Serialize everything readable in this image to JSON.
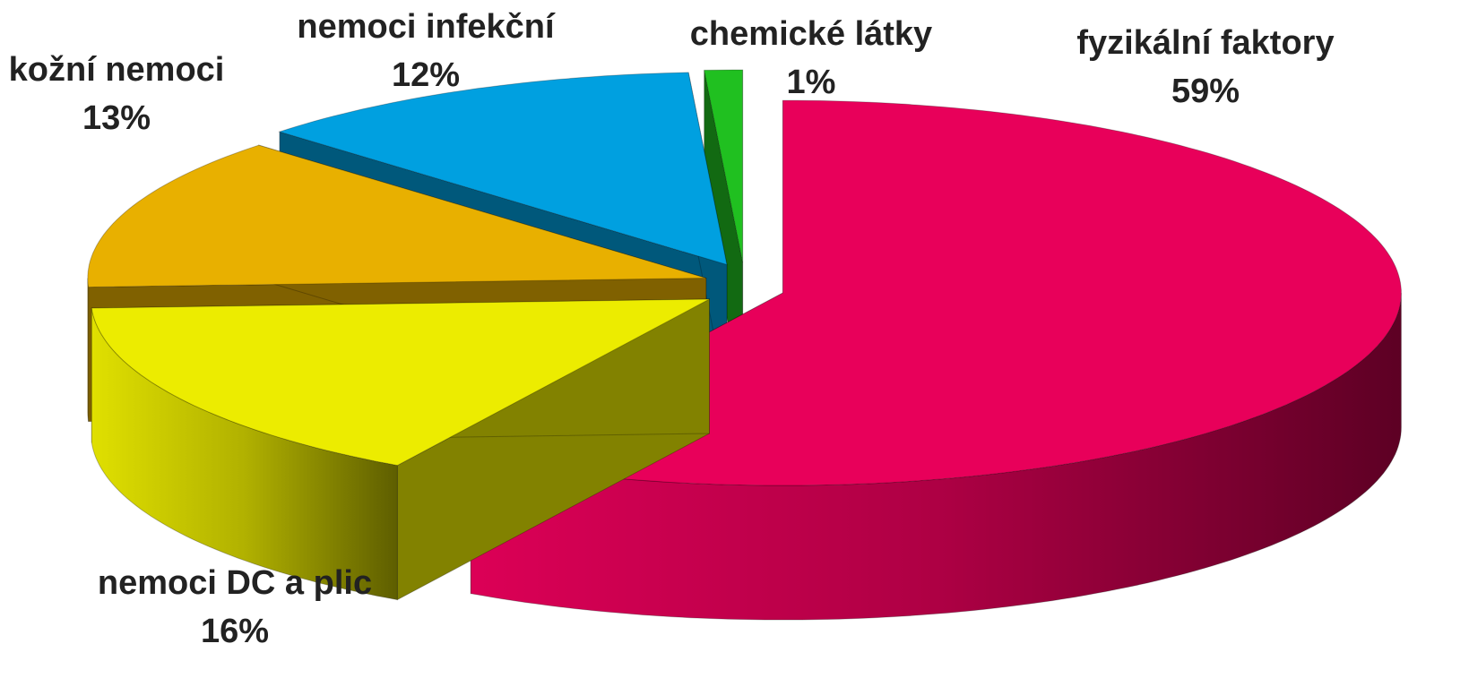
{
  "chart_data": {
    "type": "pie3d",
    "categories": [
      "fyzikální faktory",
      "nemoci DC a plic",
      "kožní nemoci",
      "nemoci infekční",
      "chemické látky"
    ],
    "values": [
      59,
      16,
      13,
      12,
      1
    ],
    "value_labels": [
      "59%",
      "16%",
      "13%",
      "12%",
      "1%"
    ],
    "colors": [
      "#e8005a",
      "#ecec00",
      "#e8b000",
      "#00a0e0",
      "#20c020"
    ]
  }
}
